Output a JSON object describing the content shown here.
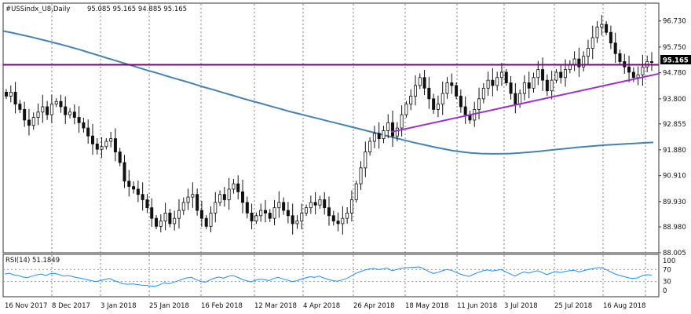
{
  "header": {
    "symbol": "#USSindx_U8,Daily",
    "ohlc": "95.085 95.165 94.885 95.165"
  },
  "rsi_header": {
    "label": "RSI(14) 51.1849"
  },
  "current_price_label": "95.165",
  "colors": {
    "candle": "#111111",
    "ma": "#4682b4",
    "level": "#800080",
    "trendline": "#9932cc",
    "rsi": "#1e90ff",
    "grid": "#7f7f7f"
  },
  "chart_data": [
    {
      "type": "candlestick",
      "title": "",
      "x_tick_labels": [
        "16 Nov 2017",
        "8 Dec 2017",
        "3 Jan 2018",
        "25 Jan 2018",
        "16 Feb 2018",
        "12 Mar 2018",
        "4 Apr 2018",
        "26 Apr 2018",
        "18 May 2018",
        "11 Jun 2018",
        "3 Jul 2018",
        "25 Jul 2018",
        "16 Aug 2018"
      ],
      "y_tick_labels": [
        "96.730",
        "95.750",
        "94.780",
        "93.800",
        "92.855",
        "91.880",
        "90.910",
        "89.930",
        "88.980",
        "88.005"
      ],
      "ylim": [
        88.005,
        97.4
      ],
      "grid": true,
      "price_close_series": [
        93.9,
        94.05,
        93.6,
        93.4,
        93.0,
        92.8,
        93.1,
        93.3,
        93.5,
        93.2,
        93.6,
        93.7,
        93.5,
        93.2,
        93.3,
        93.1,
        92.9,
        92.7,
        92.4,
        92.1,
        91.9,
        92.0,
        92.2,
        92.3,
        91.8,
        91.4,
        90.7,
        90.5,
        90.4,
        90.2,
        90.0,
        89.7,
        89.3,
        89.0,
        89.2,
        89.5,
        89.1,
        89.3,
        89.6,
        89.9,
        90.1,
        90.2,
        89.6,
        89.3,
        89.0,
        89.5,
        89.9,
        90.2,
        90.0,
        90.4,
        90.6,
        90.3,
        89.9,
        89.5,
        89.2,
        89.4,
        89.6,
        89.5,
        89.3,
        89.7,
        89.9,
        89.6,
        89.4,
        89.1,
        89.2,
        89.5,
        89.7,
        89.9,
        89.8,
        90.0,
        89.7,
        89.4,
        89.2,
        89.1,
        89.3,
        89.5,
        90.0,
        90.6,
        91.2,
        91.8,
        92.2,
        92.5,
        92.3,
        92.6,
        92.9,
        92.4,
        92.7,
        93.2,
        93.6,
        93.9,
        94.3,
        94.6,
        94.2,
        93.8,
        93.4,
        93.6,
        94.0,
        94.4,
        94.3,
        93.9,
        93.5,
        93.2,
        93.0,
        93.4,
        93.8,
        94.2,
        94.5,
        94.3,
        94.6,
        94.8,
        94.4,
        94.0,
        93.6,
        94.0,
        94.4,
        94.2,
        94.6,
        94.9,
        94.5,
        94.1,
        94.5,
        94.8,
        94.6,
        94.9,
        95.1,
        95.3,
        95.0,
        95.4,
        95.7,
        96.1,
        96.5,
        96.6,
        96.3,
        95.9,
        95.5,
        95.2,
        95.0,
        94.8,
        94.6,
        94.7,
        95.0,
        95.2,
        95.165
      ]
    },
    {
      "type": "line",
      "title": "",
      "series_label": "RSI(14) 51.1849",
      "y_tick_labels": [
        "100",
        "70",
        "30",
        "0"
      ],
      "ylim": [
        0,
        100
      ],
      "rsi_series": [
        55,
        58,
        52,
        50,
        45,
        43,
        48,
        52,
        55,
        50,
        56,
        57,
        53,
        48,
        50,
        46,
        43,
        40,
        36,
        33,
        30,
        33,
        37,
        40,
        33,
        28,
        22,
        21,
        22,
        20,
        18,
        17,
        15,
        14,
        19,
        26,
        22,
        27,
        32,
        38,
        42,
        44,
        36,
        31,
        27,
        35,
        41,
        45,
        41,
        47,
        50,
        45,
        38,
        33,
        29,
        34,
        38,
        36,
        33,
        40,
        44,
        39,
        35,
        30,
        32,
        38,
        42,
        46,
        44,
        48,
        42,
        37,
        33,
        31,
        35,
        40,
        48,
        57,
        63,
        68,
        72,
        74,
        70,
        72,
        75,
        66,
        70,
        74,
        76,
        77,
        78,
        79,
        72,
        64,
        57,
        60,
        66,
        70,
        68,
        61,
        55,
        50,
        47,
        55,
        61,
        66,
        69,
        65,
        68,
        70,
        62,
        55,
        48,
        56,
        62,
        58,
        63,
        66,
        60,
        53,
        59,
        63,
        60,
        64,
        66,
        68,
        62,
        66,
        70,
        73,
        76,
        76,
        70,
        62,
        55,
        50,
        46,
        42,
        40,
        43,
        50,
        53,
        51.1849
      ]
    },
    {
      "type": "line",
      "title": "",
      "ma_series": [
        96.35,
        96.28,
        96.2,
        96.12,
        96.03,
        95.94,
        95.85,
        95.75,
        95.65,
        95.54,
        95.43,
        95.32,
        95.21,
        95.1,
        94.99,
        94.88,
        94.78,
        94.67,
        94.56,
        94.46,
        94.35,
        94.24,
        94.14,
        94.03,
        93.93,
        93.82,
        93.72,
        93.62,
        93.52,
        93.42,
        93.32,
        93.23,
        93.14,
        93.05,
        92.96,
        92.87,
        92.78,
        92.69,
        92.6,
        92.51,
        92.42,
        92.33,
        92.24,
        92.15,
        92.07,
        91.99,
        91.92,
        91.85,
        91.8,
        91.76,
        91.74,
        91.73,
        91.73,
        91.74,
        91.76,
        91.79,
        91.82,
        91.86,
        91.9,
        91.93,
        91.97,
        92.0,
        92.03,
        92.06,
        92.08,
        92.1,
        92.12,
        92.14,
        92.16
      ]
    },
    {
      "type": "line",
      "title": "",
      "level_value": 95.08,
      "trendline_points": [
        [
          0,
          92.55
        ],
        [
          1,
          94.75
        ]
      ]
    }
  ]
}
